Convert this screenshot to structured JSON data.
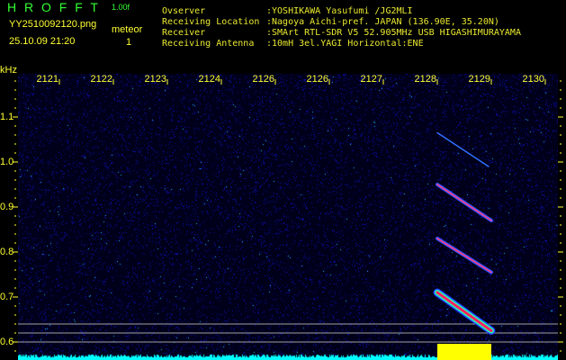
{
  "app": {
    "name": "H R O F F T",
    "version": "1.00f"
  },
  "file": {
    "name": "YY2510092120.png",
    "datetime": "25.10.09 21:20"
  },
  "meteor": {
    "label": "meteor",
    "count": "1"
  },
  "info": [
    {
      "label": "Ovserver",
      "value": ":YOSHIKAWA Yasufumi /JG2MLI"
    },
    {
      "label": "Receiving Location",
      "value": ":Nagoya Aichi-pref. JAPAN (136.90E, 35.20N)"
    },
    {
      "label": "Receiver",
      "value": ":SMArt RTL-SDR V5 52.905MHz USB HIGASHIMURAYAMA"
    },
    {
      "label": "Receiving Antenna",
      "value": ":10mH 3el.YAGI Horizontal:ENE"
    }
  ],
  "colors": {
    "text_green": "#33ff33",
    "text_yellow": "#ffff33",
    "background": "#000010",
    "noise": "#1a1aff",
    "baseline": "#00ffff",
    "detection": "#ffff00",
    "echo_core": "#ff2060"
  },
  "chart_data": {
    "type": "heatmap",
    "ylabel": "kHz",
    "x_tick_labels": [
      "2121",
      "2122",
      "2123",
      "2124",
      "2126",
      "2126",
      "2127",
      "2128",
      "2129",
      "2130"
    ],
    "y_ticks": [
      1.1,
      1.0,
      0.9,
      0.8,
      0.7,
      0.6
    ],
    "y_tick_labels": [
      "1.1",
      "1.0",
      "0.9",
      "0.8",
      "0.7",
      "0.6"
    ],
    "ylim": [
      0.576,
      1.19
    ],
    "reference_lines_khz": [
      0.62,
      0.6,
      0.58
    ],
    "echoes": [
      {
        "x_start": 2128.0,
        "x_end": 2129.0,
        "f_start": 0.71,
        "f_end": 0.625,
        "strength": "strong"
      },
      {
        "x_start": 2128.0,
        "x_end": 2129.0,
        "f_start": 0.83,
        "f_end": 0.755,
        "strength": "medium"
      },
      {
        "x_start": 2128.0,
        "x_end": 2129.0,
        "f_start": 0.95,
        "f_end": 0.87,
        "strength": "medium"
      },
      {
        "x_start": 2128.0,
        "x_end": 2128.95,
        "f_start": 1.065,
        "f_end": 0.99,
        "strength": "faint"
      }
    ],
    "detection": {
      "x_start": 2128.0,
      "x_end": 2129.0
    }
  }
}
